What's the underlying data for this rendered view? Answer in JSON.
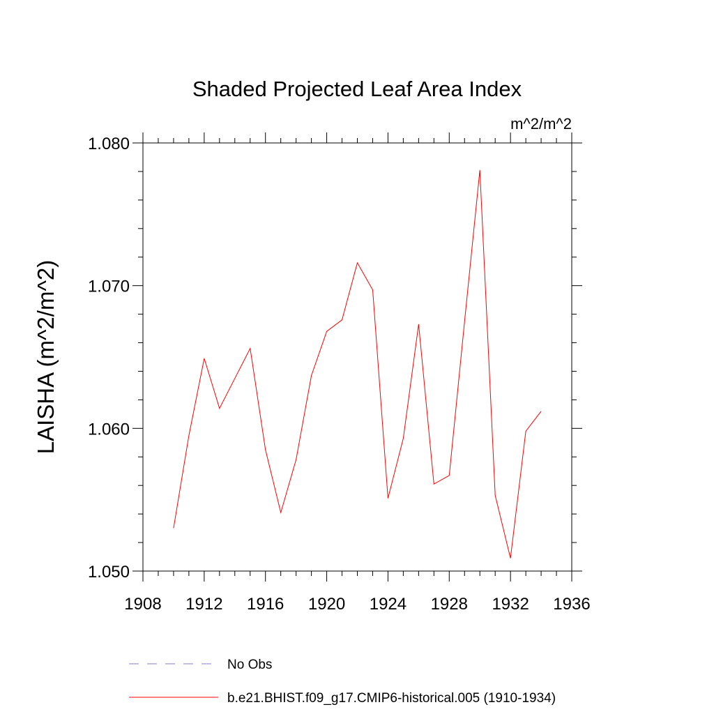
{
  "chart_data": {
    "type": "line",
    "title": "Shaded Projected Leaf Area Index",
    "units": "m^2/m^2",
    "xlabel": "",
    "ylabel": "LAISHA  (m^2/m^2)",
    "xlim": [
      1908,
      1936
    ],
    "ylim": [
      1.05,
      1.08
    ],
    "x_ticks": [
      "1908",
      "1912",
      "1916",
      "1920",
      "1924",
      "1928",
      "1932",
      "1936"
    ],
    "y_ticks": [
      "1.050",
      "1.060",
      "1.070",
      "1.080"
    ],
    "series": [
      {
        "name": "b.e21.BHIST.f09_g17.CMIP6-historical.005 (1910-1934)",
        "color": "#ff0000",
        "style": "solid",
        "x": [
          1910,
          1911,
          1912,
          1913,
          1914,
          1915,
          1916,
          1917,
          1918,
          1919,
          1920,
          1921,
          1922,
          1923,
          1924,
          1925,
          1926,
          1927,
          1928,
          1929,
          1930,
          1931,
          1932,
          1933,
          1934
        ],
        "values": [
          1.053,
          1.0595,
          1.0649,
          1.0614,
          1.0635,
          1.0656,
          1.0585,
          1.0541,
          1.0578,
          1.0637,
          1.0668,
          1.0676,
          1.0716,
          1.0697,
          1.0551,
          1.0593,
          1.0673,
          1.0561,
          1.0567,
          1.0675,
          1.0781,
          1.0553,
          1.0509,
          1.0598,
          1.0612
        ]
      }
    ],
    "legend": [
      {
        "label": "No Obs",
        "color": "#8080cc",
        "style": "dashed"
      },
      {
        "label": "b.e21.BHIST.f09_g17.CMIP6-historical.005 (1910-1934)",
        "color": "#ff0000",
        "style": "solid"
      }
    ]
  }
}
